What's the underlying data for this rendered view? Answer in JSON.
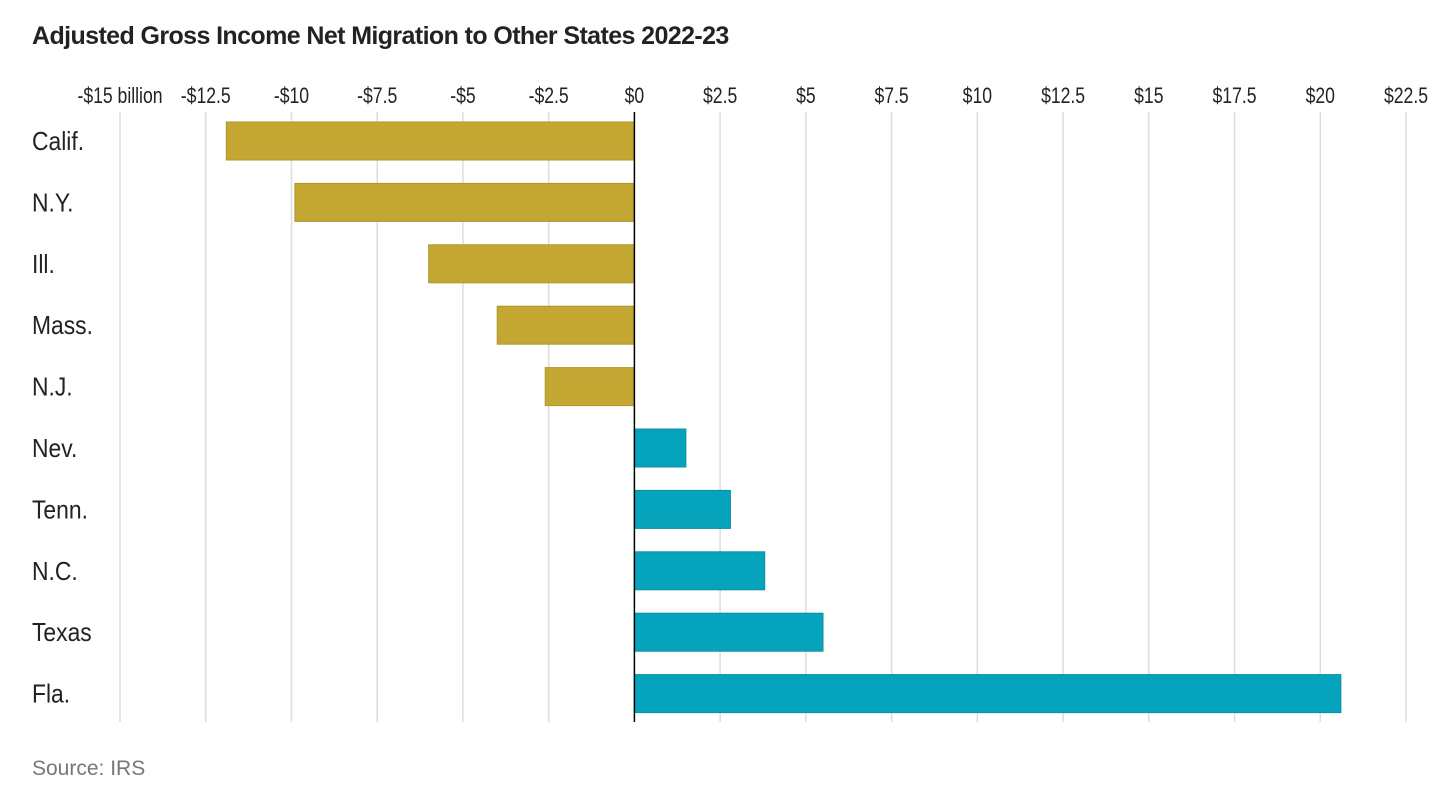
{
  "chart_data": {
    "type": "bar",
    "orientation": "horizontal",
    "title": "Adjusted Gross Income Net Migration to Other States 2022-23",
    "source": "Source: IRS",
    "xlabel": "",
    "ylabel": "",
    "unit": "billion USD",
    "xlim": [
      -15,
      22.5
    ],
    "ticks": [
      -15,
      -12.5,
      -10,
      -7.5,
      -5,
      -2.5,
      0,
      2.5,
      5,
      7.5,
      10,
      12.5,
      15,
      17.5,
      20,
      22.5
    ],
    "tick_labels": [
      "-$15 billion",
      "-$12.5",
      "-$10",
      "-$7.5",
      "-$5",
      "-$2.5",
      "$0",
      "$2.5",
      "$5",
      "$7.5",
      "$10",
      "$12.5",
      "$15",
      "$17.5",
      "$20",
      "$22.5"
    ],
    "grid": true,
    "categories": [
      "Calif.",
      "N.Y.",
      "Ill.",
      "Mass.",
      "N.J.",
      "Nev.",
      "Tenn.",
      "N.C.",
      "Texas",
      "Fla."
    ],
    "values": [
      -11.9,
      -9.9,
      -6.0,
      -4.0,
      -2.6,
      1.5,
      2.8,
      3.8,
      5.5,
      20.6
    ],
    "colors": {
      "negative": "#c4a733",
      "positive": "#05a4bc",
      "grid": "#dddddd",
      "axis": "#000000"
    }
  }
}
